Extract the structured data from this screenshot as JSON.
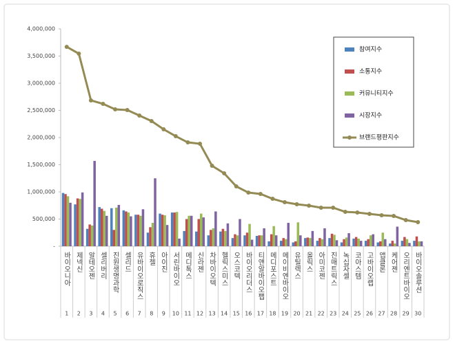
{
  "chart_data": {
    "type": "bar-line",
    "categories": [
      "바이오니아",
      "제넥신",
      "알테오젠",
      "셀리버리",
      "진원생명과학",
      "셀리드",
      "유바이오로직스",
      "휴젤",
      "아이진",
      "서린바이오",
      "메디톡스",
      "신라젠",
      "차바이오텍",
      "헬릭스미스",
      "오스코텍",
      "바이오리더스",
      "티앤알바이오팹",
      "메디포스트",
      "메이비엔바이오",
      "유틸렉스",
      "올릭스",
      "아미코젠",
      "진매트릭스",
      "녹십자셀",
      "코아스템",
      "고바이오랩",
      "앱클론",
      "케어젠",
      "오리엔트바이오",
      "바이오솔루션"
    ],
    "ranks": [
      1,
      2,
      3,
      4,
      5,
      6,
      7,
      8,
      9,
      10,
      11,
      12,
      13,
      14,
      15,
      16,
      17,
      18,
      19,
      20,
      21,
      22,
      23,
      24,
      25,
      26,
      27,
      28,
      29,
      30
    ],
    "ylim": [
      0,
      4000000
    ],
    "yticks": [
      {
        "value": 0,
        "label": "-"
      },
      {
        "value": 500000,
        "label": "500,000"
      },
      {
        "value": 1000000,
        "label": "1,000,000"
      },
      {
        "value": 1500000,
        "label": "1,500,000"
      },
      {
        "value": 2000000,
        "label": "2,000,000"
      },
      {
        "value": 2500000,
        "label": "2,500,000"
      },
      {
        "value": 3000000,
        "label": "3,000,000"
      },
      {
        "value": 3500000,
        "label": "3,500,000"
      },
      {
        "value": 4000000,
        "label": "4,000,000"
      }
    ],
    "series": [
      {
        "name": "참여지수",
        "color": "#4f81bd",
        "kind": "bar",
        "values": [
          980000,
          770000,
          320000,
          720000,
          700000,
          660000,
          580000,
          250000,
          600000,
          620000,
          280000,
          270000,
          200000,
          270000,
          150000,
          200000,
          190000,
          90000,
          100000,
          70000,
          150000,
          100000,
          150000,
          70000,
          140000,
          100000,
          70000,
          50000,
          100000,
          100000
        ]
      },
      {
        "name": "소통지수",
        "color": "#c0504d",
        "kind": "bar",
        "values": [
          960000,
          880000,
          400000,
          690000,
          300000,
          640000,
          580000,
          350000,
          580000,
          620000,
          500000,
          500000,
          300000,
          320000,
          220000,
          250000,
          200000,
          220000,
          150000,
          90000,
          160000,
          150000,
          230000,
          130000,
          170000,
          130000,
          90000,
          100000,
          170000,
          180000
        ]
      },
      {
        "name": "커뮤니티지수",
        "color": "#9bbb59",
        "kind": "bar",
        "values": [
          920000,
          870000,
          380000,
          650000,
          710000,
          620000,
          560000,
          430000,
          570000,
          630000,
          560000,
          600000,
          330000,
          280000,
          200000,
          410000,
          200000,
          370000,
          130000,
          440000,
          150000,
          130000,
          210000,
          160000,
          140000,
          200000,
          250000,
          50000,
          130000,
          90000
        ]
      },
      {
        "name": "시장지수",
        "color": "#8064a2",
        "kind": "bar",
        "values": [
          800000,
          990000,
          1570000,
          560000,
          760000,
          550000,
          680000,
          1250000,
          390000,
          140000,
          560000,
          530000,
          640000,
          420000,
          500000,
          120000,
          330000,
          200000,
          430000,
          200000,
          280000,
          330000,
          110000,
          240000,
          100000,
          220000,
          130000,
          360000,
          60000,
          90000
        ]
      },
      {
        "name": "브랜드평판지수",
        "color": "#948a54",
        "kind": "line",
        "values": [
          3670000,
          3544000,
          2684000,
          2620000,
          2519000,
          2506000,
          2405000,
          2304000,
          2152000,
          2025000,
          1911000,
          1886000,
          1481000,
          1342000,
          1101000,
          987000,
          962000,
          873000,
          810000,
          772000,
          747000,
          709000,
          709000,
          633000,
          620000,
          595000,
          570000,
          557000,
          481000,
          443000
        ]
      }
    ]
  }
}
